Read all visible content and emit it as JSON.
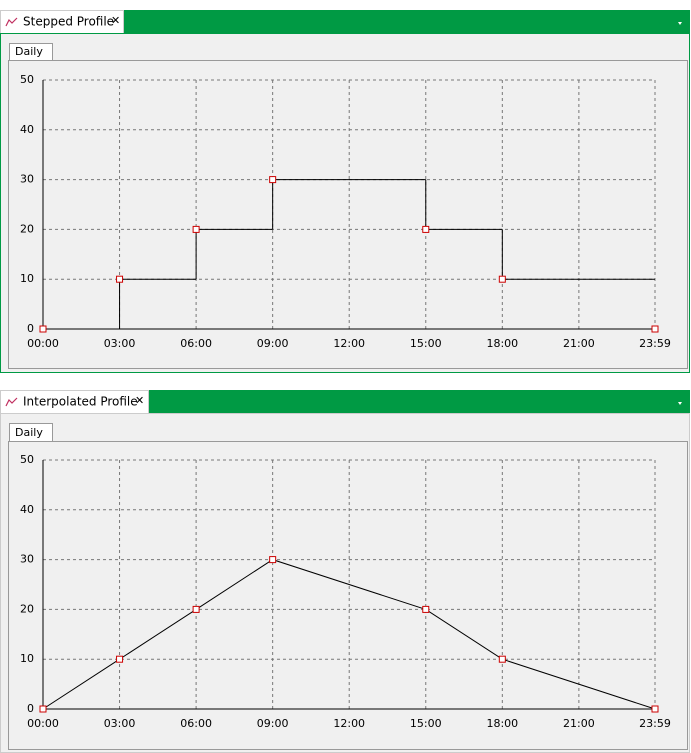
{
  "panels": [
    {
      "tab": "Stepped Profile",
      "subtab": "Daily"
    },
    {
      "tab": "Interpolated Profile",
      "subtab": "Daily"
    }
  ],
  "chart_data": [
    {
      "type": "step",
      "x": [
        0,
        180,
        360,
        540,
        900,
        1080,
        1439
      ],
      "values": [
        0,
        10,
        20,
        30,
        20,
        10,
        0
      ],
      "xlim": [
        0,
        1439
      ],
      "ylim": [
        0,
        50
      ],
      "xticks": [
        {
          "value": 0,
          "label": "00:00"
        },
        {
          "value": 180,
          "label": "03:00"
        },
        {
          "value": 360,
          "label": "06:00"
        },
        {
          "value": 540,
          "label": "09:00"
        },
        {
          "value": 720,
          "label": "12:00"
        },
        {
          "value": 900,
          "label": "15:00"
        },
        {
          "value": 1080,
          "label": "18:00"
        },
        {
          "value": 1260,
          "label": "21:00"
        },
        {
          "value": 1439,
          "label": "23:59"
        }
      ],
      "yticks": [
        0,
        10,
        20,
        30,
        40,
        50
      ],
      "grid": true,
      "color": "#000000",
      "marker_color": "#cc0000"
    },
    {
      "type": "line",
      "x": [
        0,
        180,
        360,
        540,
        900,
        1080,
        1439
      ],
      "values": [
        0,
        10,
        20,
        30,
        20,
        10,
        0
      ],
      "xlim": [
        0,
        1439
      ],
      "ylim": [
        0,
        50
      ],
      "xticks": [
        {
          "value": 0,
          "label": "00:00"
        },
        {
          "value": 180,
          "label": "03:00"
        },
        {
          "value": 360,
          "label": "06:00"
        },
        {
          "value": 540,
          "label": "09:00"
        },
        {
          "value": 720,
          "label": "12:00"
        },
        {
          "value": 900,
          "label": "15:00"
        },
        {
          "value": 1080,
          "label": "18:00"
        },
        {
          "value": 1260,
          "label": "21:00"
        },
        {
          "value": 1439,
          "label": "23:59"
        }
      ],
      "yticks": [
        0,
        10,
        20,
        30,
        40,
        50
      ],
      "grid": true,
      "color": "#000000",
      "marker_color": "#cc0000"
    }
  ]
}
